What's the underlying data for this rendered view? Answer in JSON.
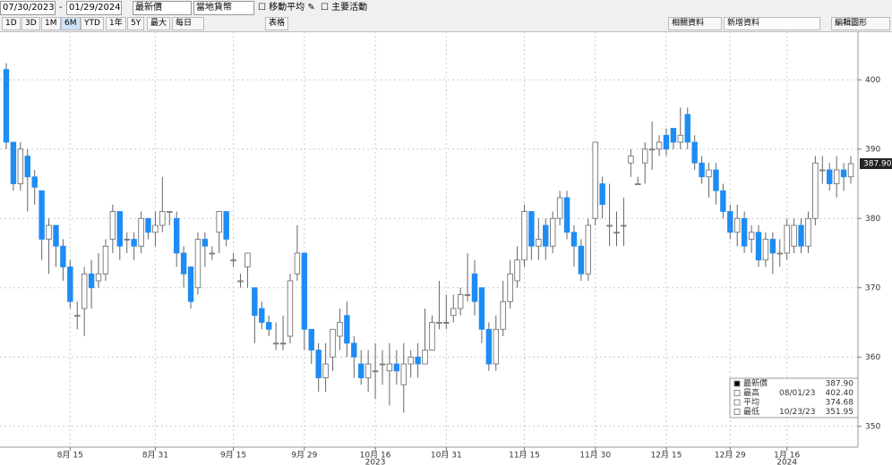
{
  "toolbar": {
    "start_date": "07/30/2023",
    "end_date": "01/29/2024",
    "price": "最新價",
    "currency": "當地貨幣",
    "checkboxes": [
      "移動平均",
      "主要活動"
    ],
    "ranges": [
      "1D",
      "3D",
      "1M",
      "6M",
      "YTD",
      "1年",
      "5Y",
      "最大"
    ],
    "frequency": "每日",
    "table": "表格",
    "related": "相關資料",
    "add": "新增資料",
    "edit": "編輯圖形"
  },
  "chart_data": {
    "type": "candlestick",
    "up_color": "#ffffff",
    "down_color": "#1e8cf5",
    "grid": true,
    "categories": [
      null,
      null,
      null,
      null,
      null,
      null,
      null,
      null,
      null,
      "8月 15",
      null,
      null,
      null,
      null,
      null,
      null,
      null,
      null,
      null,
      null,
      null,
      "8月 31",
      null,
      null,
      null,
      null,
      null,
      null,
      null,
      null,
      null,
      null,
      "9月 15",
      null,
      null,
      null,
      null,
      null,
      null,
      null,
      null,
      null,
      "9月 29",
      null,
      null,
      null,
      null,
      null,
      null,
      null,
      null,
      null,
      "10月 16",
      null,
      null,
      null,
      null,
      null,
      null,
      null,
      null,
      null,
      "10月 31",
      null,
      null,
      null,
      null,
      null,
      null,
      null,
      null,
      null,
      null,
      "11月 15",
      null,
      null,
      null,
      null,
      null,
      null,
      null,
      null,
      null,
      "11月 30",
      null,
      null,
      null,
      null,
      null,
      null,
      null,
      null,
      null,
      "12月 15",
      null,
      null,
      null,
      null,
      null,
      null,
      null,
      null,
      "12月 29",
      null,
      null,
      null,
      null,
      null,
      null,
      null,
      "1月 16",
      null,
      null,
      null,
      null,
      null,
      null,
      null,
      null,
      null
    ],
    "category_years": [
      null,
      null,
      null,
      null,
      null,
      null,
      null,
      null,
      null,
      null,
      null,
      null,
      null,
      null,
      null,
      null,
      null,
      null,
      null,
      null,
      null,
      null,
      null,
      null,
      null,
      null,
      null,
      null,
      null,
      null,
      null,
      null,
      null,
      null,
      null,
      null,
      null,
      null,
      null,
      null,
      null,
      null,
      null,
      null,
      null,
      null,
      null,
      null,
      null,
      null,
      null,
      null,
      "2023",
      null,
      null,
      null,
      null,
      null,
      null,
      null,
      null,
      null,
      null,
      null,
      null,
      null,
      null,
      null,
      null,
      null,
      null,
      null,
      null,
      null,
      null,
      null,
      null,
      null,
      null,
      null,
      null,
      null,
      null,
      null,
      null,
      null,
      null,
      null,
      null,
      null,
      null,
      null,
      null,
      null,
      null,
      null,
      null,
      null,
      null,
      null,
      null,
      null,
      null,
      null,
      null,
      null,
      null,
      null,
      null,
      null,
      "2024",
      null,
      null,
      null,
      null,
      null,
      null,
      null,
      null,
      null
    ],
    "open": [
      401.5,
      391,
      385,
      389,
      386,
      384,
      377,
      379,
      376,
      373,
      366,
      367,
      372,
      371,
      372,
      377,
      381,
      377,
      377,
      376,
      380,
      378,
      379,
      381,
      380,
      375,
      373,
      370,
      377,
      375,
      378,
      381,
      374,
      371,
      373,
      370,
      367,
      365,
      362,
      362,
      363,
      372,
      375,
      364,
      361,
      357,
      360,
      363,
      366,
      362,
      359,
      357,
      358,
      359,
      358,
      359,
      356,
      359,
      360,
      359,
      361,
      365,
      365,
      366,
      367,
      369,
      372,
      370,
      364,
      359,
      364,
      368,
      371,
      374,
      381,
      376,
      379,
      376,
      380,
      383,
      378,
      376,
      372,
      380,
      385,
      379,
      378,
      379,
      388,
      385,
      388,
      390,
      390,
      392,
      393,
      391,
      395,
      391,
      388,
      386,
      387,
      384,
      381,
      378,
      380,
      377,
      378,
      374,
      377,
      375,
      375,
      376,
      379,
      376,
      380,
      387,
      387,
      385,
      387,
      386
    ],
    "high": [
      402.4,
      391,
      391,
      390,
      387,
      384,
      380,
      379,
      377,
      374,
      368,
      373,
      374,
      375,
      377,
      382,
      381,
      378,
      378,
      381,
      380,
      381,
      386,
      381,
      381,
      376,
      373,
      378,
      378,
      376,
      381,
      381,
      375,
      372,
      375,
      370,
      368,
      366,
      365,
      366,
      372,
      379,
      375,
      364,
      362,
      362,
      364,
      367,
      368,
      363,
      361,
      361,
      362,
      361,
      362,
      361,
      362,
      361,
      362,
      367,
      366,
      371,
      369,
      369,
      370,
      375,
      374,
      370,
      365,
      366,
      371,
      374,
      376,
      382,
      381,
      380,
      380,
      381,
      384,
      384,
      379,
      377,
      380,
      391,
      386,
      385,
      381,
      383,
      390,
      386,
      391,
      394,
      392,
      393,
      393,
      396,
      396,
      392,
      389,
      388,
      388,
      385,
      382,
      382,
      381,
      379,
      379,
      378,
      378,
      377,
      380,
      380,
      380,
      381,
      389,
      389,
      388,
      389,
      388,
      389
    ],
    "low": [
      390,
      384,
      384,
      381,
      382,
      374,
      372,
      373,
      371,
      367,
      364,
      363,
      367,
      370,
      371,
      375,
      374,
      375,
      374,
      375,
      377,
      376,
      378,
      379,
      373,
      370,
      367,
      369,
      373,
      374,
      375,
      376,
      373,
      370,
      370,
      362,
      364,
      363,
      361,
      361,
      362,
      371,
      361,
      359,
      355,
      355,
      358,
      361,
      360,
      357,
      356,
      355,
      354,
      356,
      353,
      356,
      351.95,
      357,
      357,
      359,
      361,
      364,
      364,
      365,
      366,
      368,
      366,
      362,
      358,
      358,
      363,
      367,
      370,
      373,
      374,
      374,
      374,
      375,
      379,
      377,
      373,
      371,
      371,
      379,
      380,
      376,
      376,
      376,
      386,
      385,
      385,
      387,
      389,
      389,
      390,
      390,
      390,
      387,
      385,
      383,
      382,
      380,
      377,
      376,
      375,
      375,
      373,
      373,
      372,
      373,
      374,
      375,
      375,
      375,
      379,
      385,
      384,
      383,
      384,
      385
    ],
    "close": [
      391,
      385,
      390,
      386,
      384.5,
      377,
      379,
      376,
      373,
      368,
      366,
      372,
      370,
      372,
      376,
      381,
      376,
      377,
      376,
      380,
      378,
      379,
      381,
      381,
      375,
      372,
      368,
      377,
      376,
      375,
      381,
      377,
      374,
      371,
      375,
      366,
      365,
      364,
      362,
      362,
      371,
      375,
      364,
      361,
      357,
      359,
      364,
      365,
      362,
      360,
      357,
      359,
      358,
      359,
      359,
      358,
      359,
      360,
      359,
      361,
      365,
      365,
      365,
      367,
      369,
      369,
      368,
      364,
      359,
      364,
      368,
      372,
      374,
      381,
      376,
      377,
      376,
      380,
      383,
      378,
      376,
      372,
      379,
      391,
      382,
      379,
      378,
      379,
      389,
      385,
      390,
      390,
      391,
      390,
      391,
      392,
      391,
      388,
      386,
      387,
      384,
      381,
      378,
      380,
      376,
      378,
      374,
      377,
      375,
      375,
      379,
      379,
      376,
      380,
      388,
      387,
      385,
      387,
      386,
      387.9
    ],
    "ylim": [
      347,
      407
    ],
    "yticks": [
      350,
      360,
      370,
      380,
      390,
      400
    ],
    "stats": [
      {
        "label": "最新價",
        "date": null,
        "value": "387.90"
      },
      {
        "label": "最高",
        "date": "08/01/23",
        "value": "402.40"
      },
      {
        "label": "平均",
        "date": null,
        "value": "374.68"
      },
      {
        "label": "最低",
        "date": "10/23/23",
        "value": "351.95"
      }
    ]
  }
}
